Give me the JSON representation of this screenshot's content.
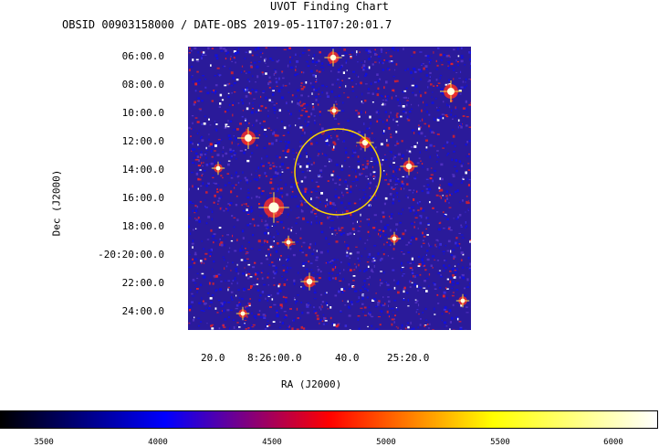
{
  "title": "UVOT Finding Chart",
  "subtitle": "OBSID 00903158000 / DATE-OBS 2019-05-11T07:20:01.7",
  "axes": {
    "y_label": "Dec  (J2000)",
    "x_label": "RA (J2000)",
    "y_ticks": [
      "06:00.0",
      "08:00.0",
      "10:00.0",
      "12:00.0",
      "14:00.0",
      "16:00.0",
      "18:00.0",
      "-20:20:00.0",
      "22:00.0",
      "24:00.0"
    ],
    "x_ticks": [
      "20.0",
      "8:26:00.0",
      "40.0",
      "25:20.0"
    ]
  },
  "colorbar": {
    "ticks": [
      "3500",
      "4000",
      "4500",
      "5000",
      "5500",
      "6000"
    ],
    "colors": [
      "#000000",
      "#0000ff",
      "#ff0000",
      "#ffff00",
      "#ffffff"
    ]
  },
  "image": {
    "background_color": "#2a1a9a",
    "region_circle_color": "#ffd800"
  }
}
